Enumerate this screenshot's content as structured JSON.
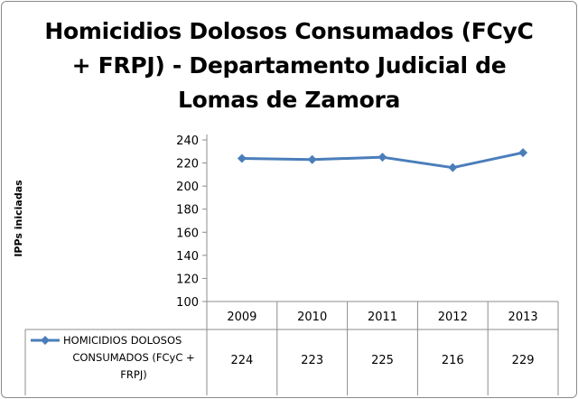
{
  "chart_data": {
    "type": "line",
    "title": "Homicidios Dolosos Consumados (FCyC + FRPJ) - Departamento Judicial de Lomas de Zamora",
    "title_lines": [
      "Homicidios Dolosos Consumados (FCyC",
      "+ FRPJ) - Departamento Judicial de",
      "Lomas de Zamora"
    ],
    "xlabel": "",
    "ylabel": "IPPs iniciadas",
    "ylim": [
      100,
      240
    ],
    "yticks": [
      "240",
      "220",
      "200",
      "180",
      "160",
      "140",
      "120",
      "100"
    ],
    "categories": [
      "2009",
      "2010",
      "2011",
      "2012",
      "2013"
    ],
    "series": [
      {
        "name": "HOMICIDIOS DOLOSOS CONSUMADOS (FCyC + FRPJ)",
        "name_lines": [
          "HOMICIDIOS DOLOSOS",
          "CONSUMADOS (FCyC +",
          "FRPJ)"
        ],
        "values": [
          224,
          223,
          225,
          216,
          229
        ],
        "color": "#4a7ebb"
      }
    ],
    "grid": false,
    "legend": "data-table"
  }
}
